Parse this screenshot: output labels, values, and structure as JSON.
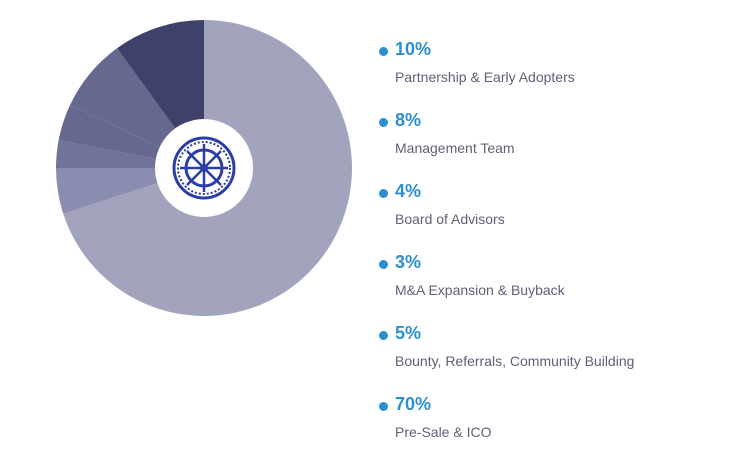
{
  "chart_data": {
    "type": "pie",
    "donut": true,
    "center_logo": "ship-wheel-emblem",
    "slices": [
      {
        "label": "Pre-Sale & ICO",
        "value": 70,
        "display": "70%",
        "color": "#a2a4bd"
      },
      {
        "label": "Bounty, Referrals, Community Building",
        "value": 5,
        "display": "5%",
        "color": "#8a8db0"
      },
      {
        "label": "M&A Expansion & Buyback",
        "value": 3,
        "display": "3%",
        "color": "#71739b"
      },
      {
        "label": "Board of Advisors",
        "value": 4,
        "display": "4%",
        "color": "#66688f"
      },
      {
        "label": "Management Team",
        "value": 8,
        "display": "8%",
        "color": "#66688f"
      },
      {
        "label": "Partnership & Early Adopters",
        "value": 10,
        "display": "10%",
        "color": "#3f416b"
      }
    ]
  },
  "legend": {
    "items": [
      {
        "value": "10%",
        "label": "Partnership & Early Adopters"
      },
      {
        "value": "8%",
        "label": "Management Team"
      },
      {
        "value": "4%",
        "label": "Board of Advisors"
      },
      {
        "value": "3%",
        "label": "M&A Expansion & Buyback"
      },
      {
        "value": "5%",
        "label": "Bounty, Referrals, Community Building"
      },
      {
        "value": "70%",
        "label": "Pre-Sale & ICO"
      }
    ]
  },
  "colors": {
    "accent": "#2b8fd1",
    "label_text": "#5f6079",
    "logo": "#2a3ea8",
    "hole": "#ffffff"
  }
}
